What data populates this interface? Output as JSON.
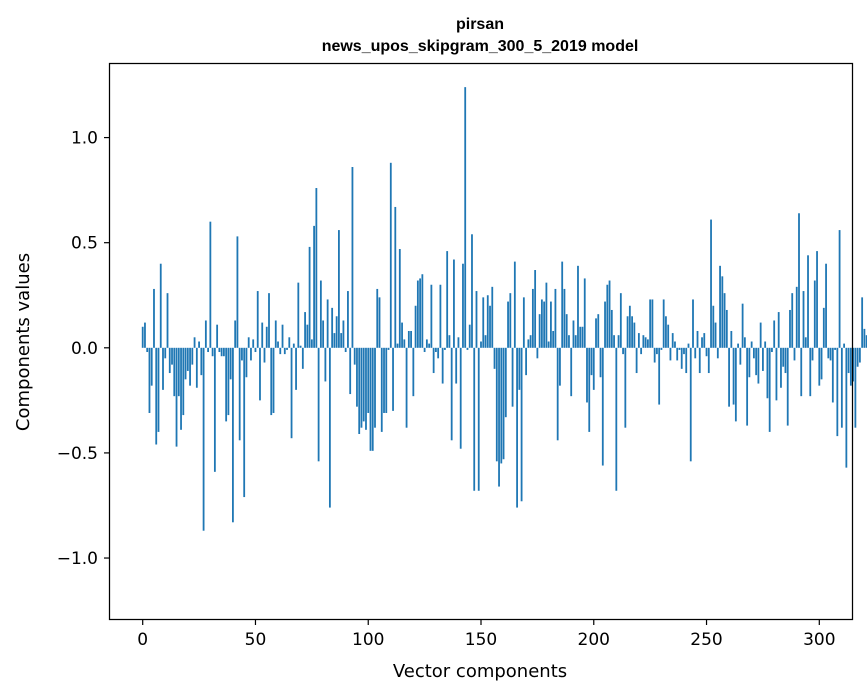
{
  "chart_data": {
    "type": "bar",
    "title": "pirsan",
    "subtitle": "news_upos_skipgram_300_5_2019 model",
    "xlabel": "Vector components",
    "ylabel": "Components values",
    "xlim": [
      -14.5,
      314.5
    ],
    "ylim": [
      -1.29,
      1.35
    ],
    "x_ticks": [
      {
        "value": 0,
        "label": "0"
      },
      {
        "value": 50,
        "label": "50"
      },
      {
        "value": 100,
        "label": "100"
      },
      {
        "value": 150,
        "label": "150"
      },
      {
        "value": 200,
        "label": "200"
      },
      {
        "value": 250,
        "label": "250"
      },
      {
        "value": 300,
        "label": "300"
      }
    ],
    "y_ticks": [
      {
        "value": -1.0,
        "label": "−1.0"
      },
      {
        "value": -0.5,
        "label": "−0.5"
      },
      {
        "value": 0.0,
        "label": "0.0"
      },
      {
        "value": 0.5,
        "label": "0.5"
      },
      {
        "value": 1.0,
        "label": "1.0"
      }
    ],
    "grid": false,
    "bar_color": "#1f77b4",
    "values": [
      0.1,
      0.12,
      -0.02,
      -0.31,
      -0.18,
      0.28,
      -0.46,
      -0.4,
      0.4,
      -0.2,
      -0.05,
      0.26,
      -0.12,
      -0.08,
      -0.23,
      -0.47,
      -0.23,
      -0.39,
      -0.32,
      -0.15,
      -0.11,
      -0.18,
      -0.08,
      0.05,
      -0.19,
      0.03,
      -0.13,
      -0.87,
      0.13,
      -0.02,
      0.6,
      -0.04,
      -0.59,
      0.11,
      -0.02,
      -0.04,
      -0.04,
      -0.35,
      -0.32,
      -0.15,
      -0.83,
      0.13,
      0.53,
      -0.44,
      -0.06,
      -0.71,
      -0.14,
      0.05,
      -0.06,
      0.04,
      -0.02,
      0.27,
      -0.25,
      0.12,
      -0.07,
      0.1,
      0.26,
      -0.32,
      -0.31,
      0.13,
      0.03,
      -0.03,
      0.11,
      -0.03,
      -0.01,
      0.05,
      -0.43,
      0.02,
      -0.2,
      0.31,
      0.01,
      -0.1,
      0.17,
      0.11,
      0.48,
      0.04,
      0.58,
      0.76,
      -0.54,
      0.32,
      0.13,
      -0.16,
      0.23,
      -0.76,
      0.19,
      0.07,
      0.15,
      0.56,
      0.07,
      0.13,
      -0.02,
      0.27,
      -0.22,
      0.86,
      -0.08,
      -0.28,
      -0.41,
      -0.38,
      -0.35,
      -0.39,
      -0.31,
      -0.49,
      -0.49,
      -0.38,
      0.28,
      0.24,
      -0.4,
      -0.31,
      -0.31,
      -0.01,
      0.88,
      -0.3,
      0.67,
      0.02,
      0.47,
      0.12,
      0.04,
      -0.38,
      0.08,
      0.08,
      -0.23,
      0.2,
      0.32,
      0.33,
      0.35,
      -0.02,
      0.04,
      0.02,
      0.3,
      -0.12,
      -0.02,
      -0.05,
      0.3,
      -0.17,
      -0.01,
      0.46,
      0.06,
      -0.44,
      0.42,
      -0.17,
      0.05,
      -0.48,
      0.4,
      1.24,
      -0.01,
      0.11,
      0.54,
      -0.68,
      0.27,
      -0.68,
      0.03,
      0.24,
      0.06,
      0.25,
      0.2,
      0.29,
      -0.1,
      -0.54,
      -0.66,
      -0.55,
      -0.53,
      -0.33,
      0.22,
      0.26,
      -0.28,
      0.41,
      -0.76,
      -0.2,
      -0.73,
      0.24,
      -0.13,
      0.04,
      0.06,
      0.28,
      0.37,
      -0.05,
      0.16,
      0.23,
      0.22,
      0.31,
      0.03,
      0.22,
      0.08,
      0.28,
      -0.44,
      -0.18,
      0.41,
      0.28,
      0.16,
      0.06,
      -0.23,
      0.13,
      0.06,
      0.39,
      0.1,
      0.1,
      0.33,
      -0.26,
      -0.4,
      -0.13,
      -0.2,
      0.14,
      0.16,
      -0.14,
      -0.56,
      0.22,
      0.3,
      0.32,
      0.18,
      0.06,
      -0.68,
      0.06,
      0.26,
      -0.03,
      -0.38,
      0.15,
      0.2,
      0.15,
      0.12,
      -0.12,
      0.07,
      -0.03,
      0.06,
      0.05,
      0.04,
      0.23,
      0.23,
      -0.07,
      -0.03,
      -0.27,
      -0.01,
      0.23,
      0.15,
      0.11,
      -0.06,
      0.07,
      0.03,
      -0.06,
      -0.01,
      -0.1,
      -0.03,
      -0.12,
      0.02,
      -0.54,
      0.23,
      -0.05,
      0.08,
      -0.12,
      0.05,
      0.07,
      -0.04,
      -0.12,
      0.61,
      0.2,
      0.12,
      -0.05,
      0.39,
      0.34,
      0.26,
      0.18,
      -0.28,
      0.08,
      -0.27,
      -0.35,
      0.02,
      -0.08,
      0.21,
      0.05,
      -0.37,
      -0.14,
      0.03,
      -0.05,
      -0.13,
      -0.17,
      0.12,
      -0.11,
      0.03,
      -0.24,
      -0.4,
      -0.02,
      0.13,
      -0.25,
      0.17,
      -0.19,
      -0.09,
      -0.12,
      -0.37,
      0.18,
      0.26,
      -0.06,
      0.29,
      0.64,
      -0.23,
      0.27,
      0.05,
      0.44,
      -0.23,
      -0.06,
      0.32,
      0.46,
      -0.18,
      -0.15,
      0.19,
      0.4,
      -0.05,
      -0.06,
      -0.26,
      -0.01,
      -0.42,
      0.56,
      -0.38,
      0.02,
      -0.57,
      -0.12,
      -0.18,
      -0.16,
      -0.38,
      -0.09,
      -0.07,
      0.24,
      0.09,
      0.06,
      0.01
    ]
  }
}
